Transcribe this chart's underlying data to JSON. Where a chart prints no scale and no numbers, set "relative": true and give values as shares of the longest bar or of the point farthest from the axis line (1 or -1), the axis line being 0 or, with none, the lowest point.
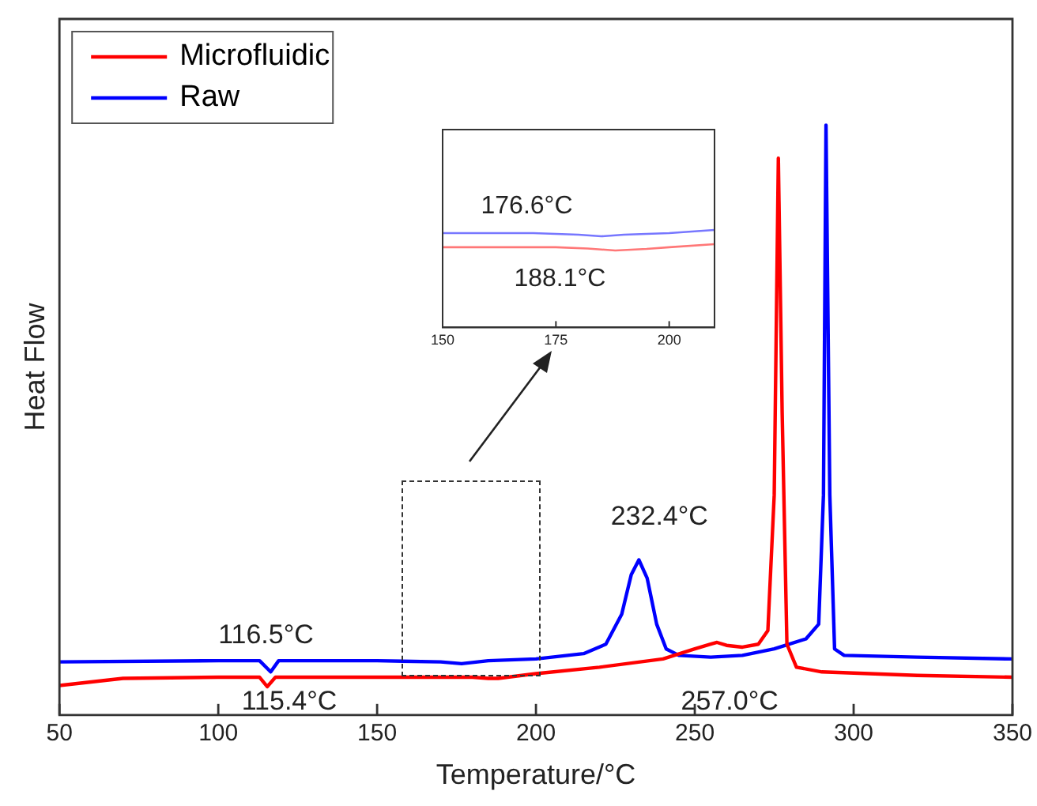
{
  "chart_data": [
    {
      "type": "line",
      "xlabel": "Temperature/°C",
      "ylabel": "Heat Flow",
      "relative": true,
      "xlim": [
        50,
        350
      ],
      "xticks": [
        50,
        100,
        150,
        200,
        250,
        300,
        350
      ],
      "tick_labels": "x",
      "grid": false,
      "legend": "top left",
      "marker": "none",
      "line_style": "solid",
      "series": [
        {
          "name": "Microfluidic",
          "color": "#ff0000",
          "x": [
            50,
            70,
            100,
            113,
            115.4,
            118,
            150,
            180,
            185,
            188.1,
            200,
            220,
            240,
            250,
            255,
            257,
            260,
            265,
            270,
            273,
            275,
            276.3,
            277.5,
            279,
            282,
            290,
            320,
            350
          ],
          "values": [
            0.05,
            0.062,
            0.064,
            0.064,
            0.048,
            0.064,
            0.064,
            0.064,
            0.062,
            0.062,
            0.07,
            0.081,
            0.095,
            0.112,
            0.12,
            0.123,
            0.118,
            0.115,
            0.12,
            0.143,
            0.373,
            0.944,
            0.513,
            0.12,
            0.081,
            0.073,
            0.067,
            0.064
          ]
        },
        {
          "name": "Raw",
          "color": "#0000ff",
          "x": [
            50,
            100,
            113,
            116.5,
            119,
            150,
            170,
            176.6,
            185,
            200,
            215,
            222,
            227,
            230,
            232.4,
            235,
            238,
            241,
            245,
            255,
            265,
            275,
            285,
            289,
            290.5,
            291.3,
            292.5,
            294,
            297,
            320,
            350
          ],
          "values": [
            0.09,
            0.092,
            0.092,
            0.073,
            0.092,
            0.092,
            0.09,
            0.087,
            0.092,
            0.095,
            0.104,
            0.12,
            0.171,
            0.238,
            0.263,
            0.232,
            0.154,
            0.112,
            0.101,
            0.098,
            0.101,
            0.112,
            0.129,
            0.154,
            0.373,
            1,
            0.373,
            0.112,
            0.101,
            0.098,
            0.095
          ]
        }
      ],
      "annotations": [
        {
          "text": "116.5°C",
          "x": 116.5,
          "y": 0.073
        },
        {
          "text": "115.4°C",
          "x": 115.4,
          "y": 0.048
        },
        {
          "text": "232.4°C",
          "x": 232.4,
          "y": 0.263
        },
        {
          "text": "257.0°C",
          "x": 257,
          "y": 0.123
        }
      ]
    },
    {
      "type": "line",
      "relative": true,
      "xlim": [
        150,
        210
      ],
      "xticks": [
        150,
        175,
        200
      ],
      "tick_labels": "x",
      "grid": false,
      "marker": "none",
      "line_style": "solid",
      "series": [
        {
          "color": "#7777ff",
          "x": [
            150,
            170,
            180,
            185,
            190,
            200,
            210
          ],
          "values": [
            0.968,
            0.968,
            0.952,
            0.935,
            0.952,
            0.968,
            1
          ]
        },
        {
          "color": "#ff7777",
          "x": [
            150,
            175,
            182,
            188.1,
            195,
            200,
            210
          ],
          "values": [
            0.823,
            0.823,
            0.81,
            0.79,
            0.806,
            0.823,
            0.855
          ]
        }
      ],
      "annotations": [
        {
          "text": "176.6°C",
          "x": 176.6,
          "y": 0.968
        },
        {
          "text": "188.1°C",
          "x": 188.1,
          "y": 0.79
        }
      ]
    }
  ]
}
